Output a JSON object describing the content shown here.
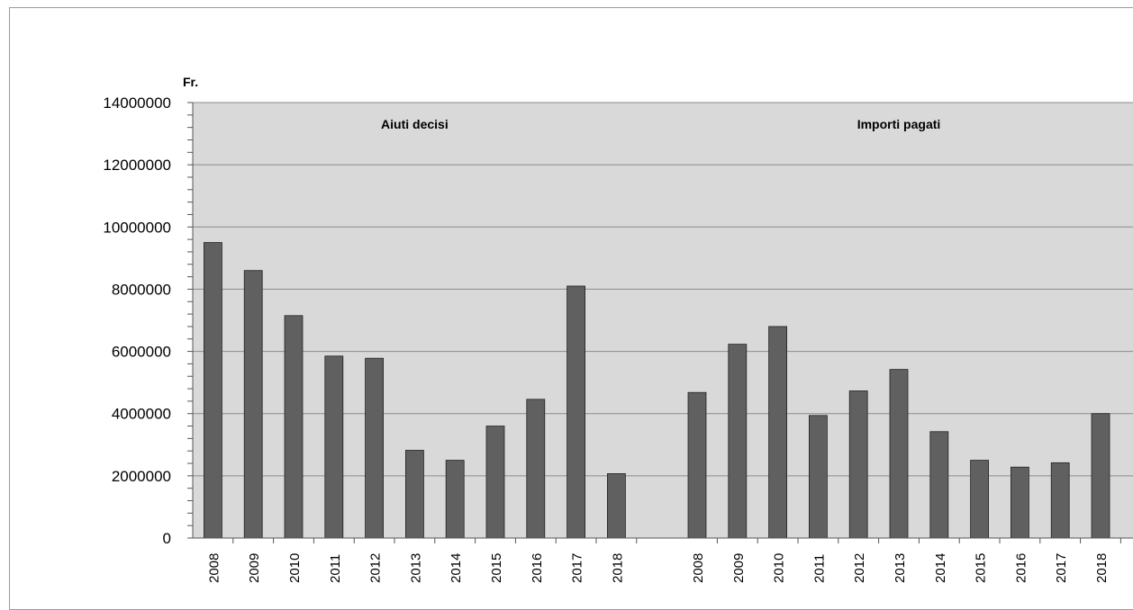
{
  "chart_data": {
    "type": "bar",
    "ylabel": "Fr.",
    "ylim": [
      0,
      14000000
    ],
    "yticks": [
      0,
      2000000,
      4000000,
      6000000,
      8000000,
      10000000,
      12000000,
      14000000
    ],
    "ytick_labels": [
      "0",
      "2000000",
      "4000000",
      "6000000",
      "8000000",
      "10000000",
      "12000000",
      "14000000"
    ],
    "grid": true,
    "bar_color": "#606060",
    "plot_background": "#d9d9d9",
    "groups": [
      {
        "label": "Aiuti decisi",
        "categories": [
          "2008",
          "2009",
          "2010",
          "2011",
          "2012",
          "2013",
          "2014",
          "2015",
          "2016",
          "2017",
          "2018"
        ],
        "values": [
          9500000,
          8600000,
          7150000,
          5850000,
          5780000,
          2820000,
          2500000,
          3600000,
          4460000,
          8100000,
          2070000
        ]
      },
      {
        "label": "Importi pagati",
        "categories": [
          "2008",
          "2009",
          "2010",
          "2011",
          "2012",
          "2013",
          "2014",
          "2015",
          "2016",
          "2017",
          "2018"
        ],
        "values": [
          4680000,
          6230000,
          6800000,
          3940000,
          4730000,
          5420000,
          3420000,
          2500000,
          2280000,
          2420000,
          4000000
        ]
      }
    ]
  }
}
